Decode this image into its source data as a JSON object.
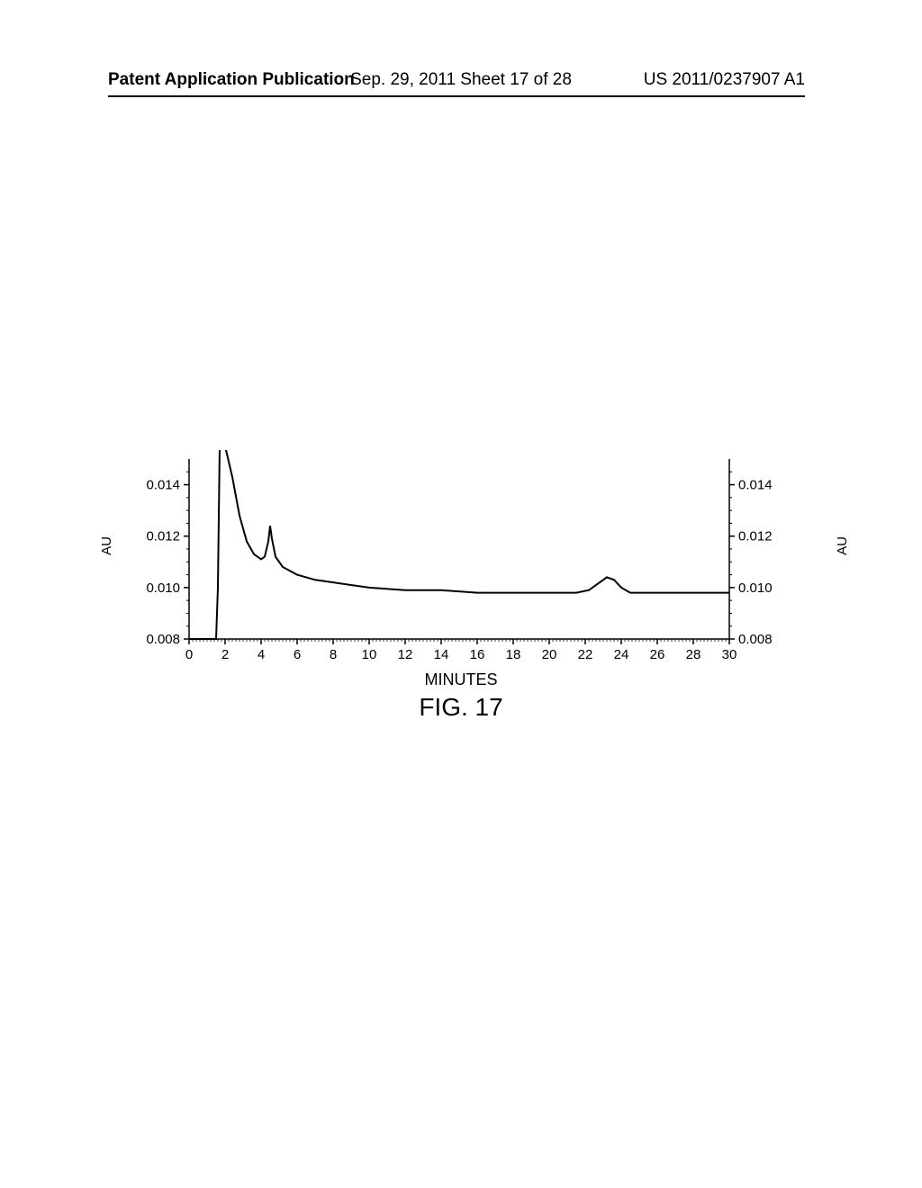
{
  "header": {
    "left": "Patent Application Publication",
    "center": "Sep. 29, 2011  Sheet 17 of 28",
    "right": "US 2011/0237907 A1"
  },
  "chart": {
    "type": "line",
    "xlabel": "MINUTES",
    "ylabel_left": "AU",
    "ylabel_right": "AU",
    "figure_label": "FIG. 17",
    "xlim": [
      0,
      30
    ],
    "ylim": [
      0.008,
      0.015
    ],
    "xticks": [
      0,
      2,
      4,
      6,
      8,
      10,
      12,
      14,
      16,
      18,
      20,
      22,
      24,
      26,
      28,
      30
    ],
    "yticks_left": [
      0.008,
      0.01,
      0.012,
      0.014
    ],
    "yticks_right": [
      0.008,
      0.01,
      0.012,
      0.014
    ],
    "line_color": "#000000",
    "line_width": 2,
    "background_color": "#ffffff",
    "axis_color": "#000000",
    "data_points": [
      [
        0,
        0.008
      ],
      [
        1.5,
        0.008
      ],
      [
        1.6,
        0.01
      ],
      [
        1.7,
        0.0155
      ],
      [
        2.0,
        0.0155
      ],
      [
        2.4,
        0.0143
      ],
      [
        2.8,
        0.0128
      ],
      [
        3.2,
        0.0118
      ],
      [
        3.6,
        0.0113
      ],
      [
        4.0,
        0.0111
      ],
      [
        4.2,
        0.0112
      ],
      [
        4.4,
        0.0118
      ],
      [
        4.5,
        0.0124
      ],
      [
        4.6,
        0.0119
      ],
      [
        4.8,
        0.0112
      ],
      [
        5.2,
        0.0108
      ],
      [
        6.0,
        0.0105
      ],
      [
        7.0,
        0.0103
      ],
      [
        8.0,
        0.0102
      ],
      [
        10.0,
        0.01
      ],
      [
        12.0,
        0.0099
      ],
      [
        14.0,
        0.0099
      ],
      [
        16.0,
        0.0098
      ],
      [
        18.0,
        0.0098
      ],
      [
        20.0,
        0.0098
      ],
      [
        21.5,
        0.0098
      ],
      [
        22.2,
        0.0099
      ],
      [
        22.8,
        0.0102
      ],
      [
        23.2,
        0.0104
      ],
      [
        23.6,
        0.0103
      ],
      [
        24.0,
        0.01
      ],
      [
        24.5,
        0.0098
      ],
      [
        26.0,
        0.0098
      ],
      [
        28.0,
        0.0098
      ],
      [
        30.0,
        0.0098
      ]
    ]
  }
}
